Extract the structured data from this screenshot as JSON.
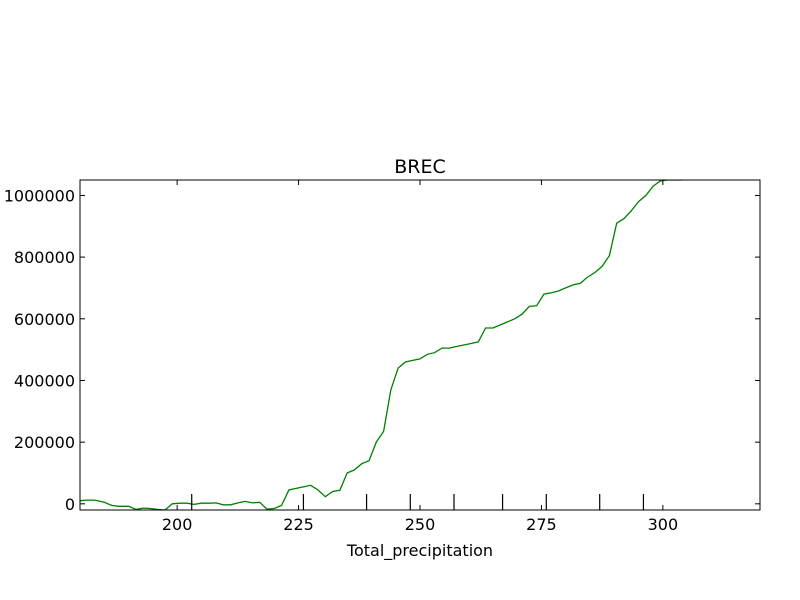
{
  "chart_data": {
    "type": "line",
    "title": "BREC",
    "xlabel": "Total_precipitation",
    "ylabel": "",
    "xlim": [
      180,
      320
    ],
    "ylim": [
      -20000,
      1050000
    ],
    "x_ticks": [
      200,
      225,
      250,
      275,
      300
    ],
    "x_tick_labels": [
      "200",
      "225",
      "250",
      "275",
      "300"
    ],
    "y_ticks": [
      0,
      200000,
      400000,
      600000,
      800000,
      1000000
    ],
    "y_tick_labels": [
      "0",
      "200000",
      "400000",
      "600000",
      "800000",
      "1000000"
    ],
    "rug_x": [
      203,
      226,
      239,
      248,
      257,
      267,
      276,
      287,
      296
    ],
    "grid": false,
    "series": [
      {
        "color": "#008000",
        "x": [
          180,
          181.5,
          183,
          185,
          186.5,
          188,
          190,
          191.5,
          193,
          194.5,
          196,
          197.5,
          199,
          200.5,
          202,
          203.5,
          205,
          206.5,
          208,
          209.5,
          211,
          212.5,
          214,
          215.5,
          217,
          218.5,
          220,
          221.5,
          223,
          224.5,
          226,
          227.5,
          229,
          230.5,
          232,
          233.5,
          235,
          236.5,
          238,
          239.5,
          241,
          242.5,
          244,
          245.5,
          247,
          248.5,
          250,
          251.5,
          253,
          254.5,
          256,
          257.5,
          259,
          260.5,
          262,
          263.5,
          265,
          266.5,
          268,
          269.5,
          271,
          272.5,
          274,
          275.5,
          277,
          278.5,
          280,
          281.5,
          283,
          284.5,
          286,
          287.5,
          289,
          290.5,
          292,
          293.5,
          295,
          296.5,
          298,
          299.5,
          301,
          302.5,
          304
        ],
        "y": [
          10000,
          12000,
          12000,
          5000,
          -5000,
          -8000,
          -8000,
          -18000,
          -14000,
          -15000,
          -18000,
          -20000,
          0,
          2000,
          2000,
          -2000,
          2000,
          2000,
          3000,
          -3000,
          -3000,
          3000,
          8000,
          3000,
          5000,
          -17000,
          -15000,
          -5000,
          45000,
          50000,
          55000,
          60000,
          45000,
          23000,
          40000,
          44000,
          100000,
          110000,
          130000,
          140000,
          200000,
          235000,
          370000,
          440000,
          460000,
          465000,
          470000,
          485000,
          490000,
          505000,
          505000,
          510000,
          515000,
          520000,
          525000,
          570000,
          570000,
          580000,
          590000,
          600000,
          615000,
          640000,
          642000,
          680000,
          684000,
          690000,
          700000,
          710000,
          715000,
          735000,
          750000,
          770000,
          805000,
          910000,
          925000,
          950000,
          980000,
          1000000,
          1030000,
          1047000,
          1050000,
          1050000,
          1050000
        ]
      }
    ]
  }
}
